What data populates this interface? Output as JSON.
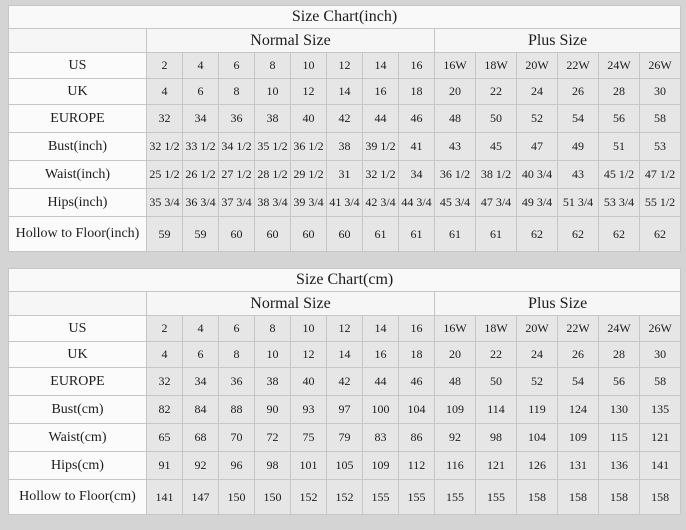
{
  "page_background": "#d4d4d4",
  "colors": {
    "table_background": "#f8f8f8",
    "data_cell_background": "#e6e6e6",
    "label_cell_background": "#fbfbfb",
    "grid_line": "#c6c6c6",
    "text": "#1c1c1c"
  },
  "chart_data": [
    {
      "type": "table",
      "title": "Size Chart(inch)",
      "column_groups": [
        {
          "label": "Normal Size",
          "span": 8
        },
        {
          "label": "Plus Size",
          "span": 6
        }
      ],
      "rows": [
        {
          "label": "US",
          "values": [
            "2",
            "4",
            "6",
            "8",
            "10",
            "12",
            "14",
            "16",
            "16W",
            "18W",
            "20W",
            "22W",
            "24W",
            "26W"
          ]
        },
        {
          "label": "UK",
          "values": [
            "4",
            "6",
            "8",
            "10",
            "12",
            "14",
            "16",
            "18",
            "20",
            "22",
            "24",
            "26",
            "28",
            "30"
          ]
        },
        {
          "label": "EUROPE",
          "values": [
            "32",
            "34",
            "36",
            "38",
            "40",
            "42",
            "44",
            "46",
            "48",
            "50",
            "52",
            "54",
            "56",
            "58"
          ]
        },
        {
          "label": "Bust(inch)",
          "values": [
            "32 1/2",
            "33 1/2",
            "34 1/2",
            "35 1/2",
            "36 1/2",
            "38",
            "39 1/2",
            "41",
            "43",
            "45",
            "47",
            "49",
            "51",
            "53"
          ]
        },
        {
          "label": "Waist(inch)",
          "values": [
            "25 1/2",
            "26 1/2",
            "27 1/2",
            "28 1/2",
            "29 1/2",
            "31",
            "32 1/2",
            "34",
            "36 1/2",
            "38 1/2",
            "40 3/4",
            "43",
            "45 1/2",
            "47 1/2"
          ]
        },
        {
          "label": "Hips(inch)",
          "values": [
            "35 3/4",
            "36 3/4",
            "37 3/4",
            "38 3/4",
            "39 3/4",
            "41 3/4",
            "42 3/4",
            "44 3/4",
            "45 3/4",
            "47 3/4",
            "49 3/4",
            "51 3/4",
            "53 3/4",
            "55 1/2"
          ]
        },
        {
          "label": "Hollow to Floor(inch)",
          "values": [
            "59",
            "59",
            "60",
            "60",
            "60",
            "60",
            "61",
            "61",
            "61",
            "61",
            "62",
            "62",
            "62",
            "62"
          ]
        }
      ]
    },
    {
      "type": "table",
      "title": "Size Chart(cm)",
      "column_groups": [
        {
          "label": "Normal Size",
          "span": 8
        },
        {
          "label": "Plus Size",
          "span": 6
        }
      ],
      "rows": [
        {
          "label": "US",
          "values": [
            "2",
            "4",
            "6",
            "8",
            "10",
            "12",
            "14",
            "16",
            "16W",
            "18W",
            "20W",
            "22W",
            "24W",
            "26W"
          ]
        },
        {
          "label": "UK",
          "values": [
            "4",
            "6",
            "8",
            "10",
            "12",
            "14",
            "16",
            "18",
            "20",
            "22",
            "24",
            "26",
            "28",
            "30"
          ]
        },
        {
          "label": "EUROPE",
          "values": [
            "32",
            "34",
            "36",
            "38",
            "40",
            "42",
            "44",
            "46",
            "48",
            "50",
            "52",
            "54",
            "56",
            "58"
          ]
        },
        {
          "label": "Bust(cm)",
          "values": [
            "82",
            "84",
            "88",
            "90",
            "93",
            "97",
            "100",
            "104",
            "109",
            "114",
            "119",
            "124",
            "130",
            "135"
          ]
        },
        {
          "label": "Waist(cm)",
          "values": [
            "65",
            "68",
            "70",
            "72",
            "75",
            "79",
            "83",
            "86",
            "92",
            "98",
            "104",
            "109",
            "115",
            "121"
          ]
        },
        {
          "label": "Hips(cm)",
          "values": [
            "91",
            "92",
            "96",
            "98",
            "101",
            "105",
            "109",
            "112",
            "116",
            "121",
            "126",
            "131",
            "136",
            "141"
          ]
        },
        {
          "label": "Hollow to Floor(cm)",
          "values": [
            "141",
            "147",
            "150",
            "150",
            "152",
            "152",
            "155",
            "155",
            "155",
            "155",
            "158",
            "158",
            "158",
            "158"
          ]
        }
      ]
    }
  ]
}
